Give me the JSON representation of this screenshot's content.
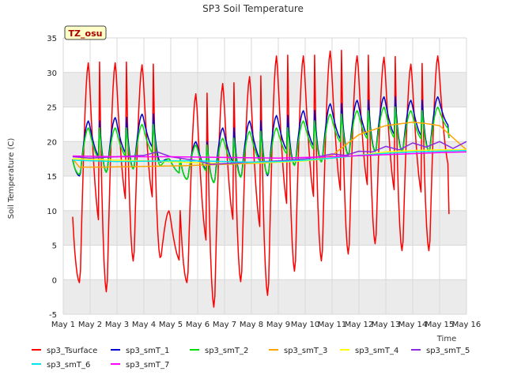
{
  "chart_data": {
    "type": "line",
    "title": "SP3 Soil Temperature",
    "xlabel": "Time",
    "ylabel": "Soil Temperature (C)",
    "ylim": [
      -5,
      35
    ],
    "xlim": [
      0,
      15
    ],
    "yticks": [
      -5,
      0,
      5,
      10,
      15,
      20,
      25,
      30,
      35
    ],
    "xticks": [
      0,
      1,
      2,
      3,
      4,
      5,
      6,
      7,
      8,
      9,
      10,
      11,
      12,
      13,
      14,
      15
    ],
    "xtick_labels": [
      "May 1",
      "May 2",
      "May 3",
      "May 4",
      "May 5",
      "May 6",
      "May 7",
      "May 8",
      "May 9",
      "May 10",
      "May 11",
      "May 12",
      "May 13",
      "May 14",
      "May 15",
      "May 16"
    ],
    "badge": "TZ_osu",
    "series": [
      {
        "name": "sp3_Tsurface",
        "color": "#ff0000",
        "daily": [
          [
            -0.5,
            31.5
          ],
          [
            -2.0,
            31.5
          ],
          [
            2.5,
            31.2
          ],
          [
            3.0,
            10.0
          ],
          [
            -0.5,
            27.0
          ],
          [
            -4.2,
            28.5
          ],
          [
            -0.5,
            29.5
          ],
          [
            -2.5,
            32.5
          ],
          [
            1.0,
            32.5
          ],
          [
            2.5,
            33.2
          ],
          [
            3.5,
            32.5
          ],
          [
            5.0,
            32.3
          ],
          [
            4.0,
            31.3
          ],
          [
            4.0,
            32.5
          ]
        ],
        "end": 9.5
      },
      {
        "name": "sp3_smT_1",
        "color": "#0000cc",
        "daily": [
          [
            15.0,
            23.0
          ],
          [
            15.5,
            23.5
          ],
          [
            16.0,
            24.0
          ],
          [
            17.0,
            17.5
          ],
          [
            14.5,
            20.0
          ],
          [
            14.0,
            22.0
          ],
          [
            14.8,
            23.0
          ],
          [
            15.0,
            23.8
          ],
          [
            16.5,
            24.5
          ],
          [
            17.0,
            25.5
          ],
          [
            18.0,
            26.0
          ],
          [
            18.5,
            26.5
          ],
          [
            18.5,
            26.0
          ],
          [
            18.5,
            26.5
          ]
        ],
        "end": 20.5
      },
      {
        "name": "sp3_smT_2",
        "color": "#00dd00",
        "daily": [
          [
            15.2,
            22.0
          ],
          [
            15.5,
            22.0
          ],
          [
            16.0,
            22.5
          ],
          [
            16.5,
            17.5
          ],
          [
            14.5,
            19.5
          ],
          [
            14.0,
            20.5
          ],
          [
            14.8,
            21.5
          ],
          [
            15.2,
            22.0
          ],
          [
            16.5,
            23.0
          ],
          [
            17.0,
            24.0
          ],
          [
            18.0,
            24.5
          ],
          [
            18.5,
            25.0
          ],
          [
            18.5,
            24.5
          ],
          [
            18.5,
            25.0
          ]
        ],
        "end": 20.5
      },
      {
        "name": "sp3_smT_3",
        "color": "#ffa500",
        "x": [
          0.35,
          0.6,
          1.5,
          3.0,
          4.5,
          6.0,
          7.5,
          9.0,
          9.5,
          10.0,
          11.0,
          12.0,
          13.0,
          13.5,
          14.0,
          15.0
        ],
        "y": [
          17.5,
          16.3,
          16.3,
          16.4,
          16.5,
          16.7,
          16.9,
          17.3,
          17.5,
          18.0,
          21.0,
          22.3,
          22.8,
          22.6,
          22.3,
          18.8
        ]
      },
      {
        "name": "sp3_smT_4",
        "color": "#ffff00",
        "x": [
          0.35,
          3.0,
          6.0,
          8.0,
          9.0,
          10.0,
          11.0,
          12.0,
          13.0,
          14.0,
          15.0
        ],
        "y": [
          17.5,
          17.2,
          16.8,
          17.0,
          17.2,
          17.6,
          18.0,
          18.5,
          18.7,
          18.8,
          18.8
        ]
      },
      {
        "name": "sp3_smT_5",
        "color": "#8a2be2",
        "x": [
          0.35,
          1.0,
          2.0,
          3.0,
          3.5,
          4.0,
          5.0,
          5.5,
          6.0,
          7.0,
          8.0,
          9.0,
          9.5,
          10.0,
          10.5,
          11.0,
          11.5,
          12.0,
          12.5,
          13.0,
          13.5,
          14.0,
          14.5,
          15.0
        ],
        "y": [
          17.8,
          17.6,
          17.8,
          18.0,
          18.5,
          17.8,
          17.2,
          16.7,
          16.8,
          17.0,
          17.2,
          17.5,
          17.8,
          18.2,
          18.0,
          18.6,
          18.5,
          19.3,
          18.8,
          19.8,
          19.2,
          20.0,
          19.0,
          20.0
        ]
      },
      {
        "name": "sp3_smT_6",
        "color": "#00e5ee",
        "x": [
          0.35,
          2.0,
          4.0,
          5.0,
          6.0,
          7.0,
          8.0,
          9.0,
          10.0,
          11.0,
          12.0,
          13.0,
          14.0,
          15.0
        ],
        "y": [
          17.3,
          17.1,
          17.2,
          17.2,
          17.1,
          17.0,
          17.1,
          17.3,
          17.6,
          18.0,
          18.3,
          18.5,
          18.6,
          18.7
        ]
      },
      {
        "name": "sp3_smT_7",
        "color": "#ff00ff",
        "x": [
          0.35,
          2.0,
          4.0,
          6.0,
          8.0,
          10.0,
          12.0,
          14.0,
          15.0
        ],
        "y": [
          17.9,
          17.8,
          17.8,
          17.7,
          17.6,
          17.8,
          18.1,
          18.4,
          18.5
        ]
      }
    ]
  }
}
